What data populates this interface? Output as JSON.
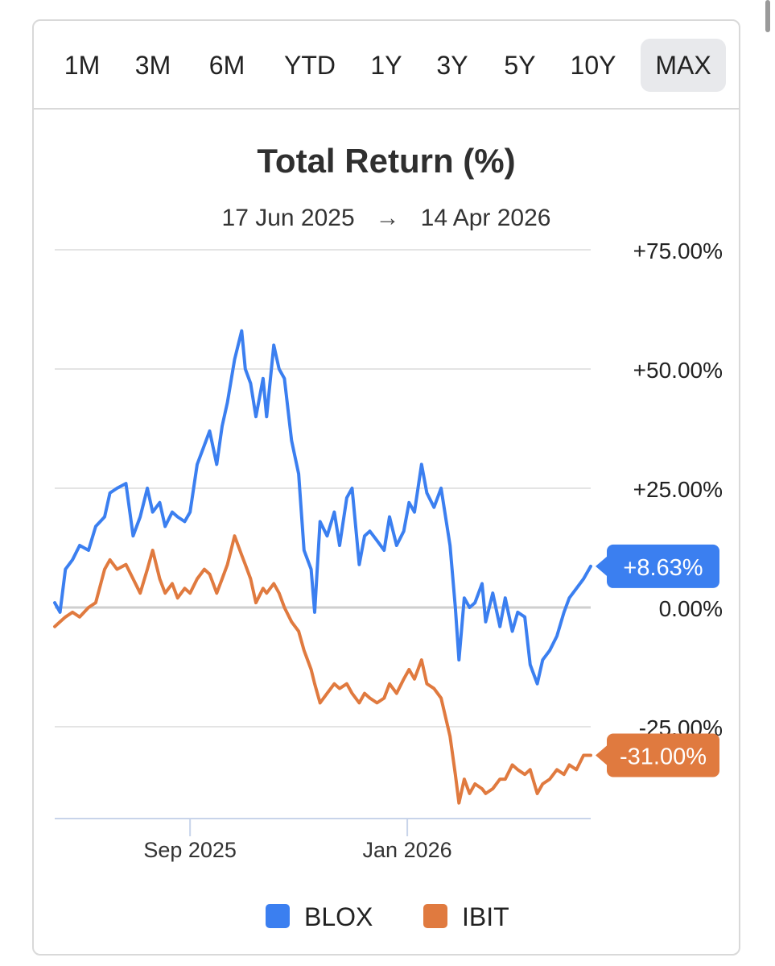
{
  "range_buttons": [
    {
      "label": "1M",
      "active": false
    },
    {
      "label": "3M",
      "active": false
    },
    {
      "label": "6M",
      "active": false
    },
    {
      "label": "YTD",
      "active": false
    },
    {
      "label": "1Y",
      "active": false
    },
    {
      "label": "3Y",
      "active": false
    },
    {
      "label": "5Y",
      "active": false
    },
    {
      "label": "10Y",
      "active": false
    },
    {
      "label": "MAX",
      "active": true
    }
  ],
  "date_range": {
    "start": "17 Jun 2025",
    "arrow": "→",
    "end": "14 Apr 2026"
  },
  "chart_data": {
    "type": "line",
    "title": "Total Return (%)",
    "x_range": [
      "2025-06-17",
      "2026-04-14"
    ],
    "x_tick_labels": [
      {
        "date": "2025-09-01",
        "label": "Sep 2025"
      },
      {
        "date": "2026-01-01",
        "label": "Jan 2026"
      }
    ],
    "y_ticks": [
      {
        "value": 75,
        "label": "+75.00%"
      },
      {
        "value": 50,
        "label": "+50.00%"
      },
      {
        "value": 25,
        "label": "+25.00%"
      },
      {
        "value": 0,
        "label": "0.00%"
      },
      {
        "value": -25,
        "label": "-25.00%"
      }
    ],
    "ylim": [
      -44,
      79
    ],
    "grid": true,
    "legend_position": "bottom",
    "series": [
      {
        "name": "BLOX",
        "color": "#3b7ff0",
        "end_label": "+8.63%",
        "points": [
          [
            "2025-06-17",
            1
          ],
          [
            "2025-06-20",
            -1
          ],
          [
            "2025-06-23",
            8
          ],
          [
            "2025-06-27",
            10
          ],
          [
            "2025-07-01",
            13
          ],
          [
            "2025-07-06",
            12
          ],
          [
            "2025-07-10",
            17
          ],
          [
            "2025-07-15",
            19
          ],
          [
            "2025-07-18",
            24
          ],
          [
            "2025-07-22",
            25
          ],
          [
            "2025-07-27",
            26
          ],
          [
            "2025-07-31",
            15
          ],
          [
            "2025-08-04",
            19
          ],
          [
            "2025-08-08",
            25
          ],
          [
            "2025-08-11",
            20
          ],
          [
            "2025-08-15",
            22
          ],
          [
            "2025-08-18",
            17
          ],
          [
            "2025-08-22",
            20
          ],
          [
            "2025-08-25",
            19
          ],
          [
            "2025-08-29",
            18
          ],
          [
            "2025-09-01",
            20
          ],
          [
            "2025-09-05",
            30
          ],
          [
            "2025-09-09",
            34
          ],
          [
            "2025-09-12",
            37
          ],
          [
            "2025-09-16",
            30
          ],
          [
            "2025-09-19",
            38
          ],
          [
            "2025-09-22",
            43
          ],
          [
            "2025-09-26",
            52
          ],
          [
            "2025-09-30",
            58
          ],
          [
            "2025-10-02",
            50
          ],
          [
            "2025-10-05",
            47
          ],
          [
            "2025-10-08",
            40
          ],
          [
            "2025-10-12",
            48
          ],
          [
            "2025-10-14",
            40
          ],
          [
            "2025-10-18",
            55
          ],
          [
            "2025-10-21",
            50
          ],
          [
            "2025-10-24",
            48
          ],
          [
            "2025-10-28",
            35
          ],
          [
            "2025-11-01",
            28
          ],
          [
            "2025-11-04",
            12
          ],
          [
            "2025-11-08",
            8
          ],
          [
            "2025-11-10",
            -1
          ],
          [
            "2025-11-13",
            18
          ],
          [
            "2025-11-17",
            15
          ],
          [
            "2025-11-21",
            20
          ],
          [
            "2025-11-24",
            13
          ],
          [
            "2025-11-28",
            23
          ],
          [
            "2025-12-01",
            25
          ],
          [
            "2025-12-05",
            9
          ],
          [
            "2025-12-08",
            15
          ],
          [
            "2025-12-11",
            16
          ],
          [
            "2025-12-15",
            14
          ],
          [
            "2025-12-19",
            12
          ],
          [
            "2025-12-22",
            19
          ],
          [
            "2025-12-26",
            13
          ],
          [
            "2025-12-30",
            16
          ],
          [
            "2026-01-02",
            22
          ],
          [
            "2026-01-05",
            20
          ],
          [
            "2026-01-09",
            30
          ],
          [
            "2026-01-12",
            24
          ],
          [
            "2026-01-16",
            21
          ],
          [
            "2026-01-20",
            25
          ],
          [
            "2026-01-25",
            13
          ],
          [
            "2026-01-28",
            0
          ],
          [
            "2026-01-30",
            -11
          ],
          [
            "2026-02-02",
            2
          ],
          [
            "2026-02-05",
            0
          ],
          [
            "2026-02-08",
            1
          ],
          [
            "2026-02-12",
            5
          ],
          [
            "2026-02-14",
            -3
          ],
          [
            "2026-02-18",
            3
          ],
          [
            "2026-02-22",
            -4
          ],
          [
            "2026-02-25",
            2
          ],
          [
            "2026-03-01",
            -5
          ],
          [
            "2026-03-04",
            -1
          ],
          [
            "2026-03-08",
            -2
          ],
          [
            "2026-03-11",
            -12
          ],
          [
            "2026-03-15",
            -16
          ],
          [
            "2026-03-18",
            -11
          ],
          [
            "2026-03-22",
            -9
          ],
          [
            "2026-03-26",
            -6
          ],
          [
            "2026-03-30",
            -1
          ],
          [
            "2026-04-02",
            2
          ],
          [
            "2026-04-06",
            4
          ],
          [
            "2026-04-10",
            6
          ],
          [
            "2026-04-14",
            8.63
          ]
        ]
      },
      {
        "name": "IBIT",
        "color": "#e07a3f",
        "end_label": "-31.00%",
        "points": [
          [
            "2025-06-17",
            -4
          ],
          [
            "2025-06-20",
            -3
          ],
          [
            "2025-06-23",
            -2
          ],
          [
            "2025-06-27",
            -1
          ],
          [
            "2025-07-01",
            -2
          ],
          [
            "2025-07-06",
            0
          ],
          [
            "2025-07-10",
            1
          ],
          [
            "2025-07-15",
            8
          ],
          [
            "2025-07-18",
            10
          ],
          [
            "2025-07-22",
            8
          ],
          [
            "2025-07-27",
            9
          ],
          [
            "2025-07-31",
            6
          ],
          [
            "2025-08-04",
            3
          ],
          [
            "2025-08-08",
            8
          ],
          [
            "2025-08-11",
            12
          ],
          [
            "2025-08-15",
            6
          ],
          [
            "2025-08-18",
            3
          ],
          [
            "2025-08-22",
            5
          ],
          [
            "2025-08-25",
            2
          ],
          [
            "2025-08-29",
            4
          ],
          [
            "2025-09-01",
            3
          ],
          [
            "2025-09-05",
            6
          ],
          [
            "2025-09-09",
            8
          ],
          [
            "2025-09-12",
            7
          ],
          [
            "2025-09-16",
            3
          ],
          [
            "2025-09-19",
            6
          ],
          [
            "2025-09-22",
            9
          ],
          [
            "2025-09-26",
            15
          ],
          [
            "2025-09-30",
            11
          ],
          [
            "2025-10-02",
            9
          ],
          [
            "2025-10-05",
            6
          ],
          [
            "2025-10-08",
            1
          ],
          [
            "2025-10-12",
            4
          ],
          [
            "2025-10-14",
            3
          ],
          [
            "2025-10-18",
            5
          ],
          [
            "2025-10-21",
            3
          ],
          [
            "2025-10-24",
            0
          ],
          [
            "2025-10-28",
            -3
          ],
          [
            "2025-11-01",
            -5
          ],
          [
            "2025-11-04",
            -9
          ],
          [
            "2025-11-08",
            -13
          ],
          [
            "2025-11-10",
            -16
          ],
          [
            "2025-11-13",
            -20
          ],
          [
            "2025-11-17",
            -18
          ],
          [
            "2025-11-21",
            -16
          ],
          [
            "2025-11-24",
            -17
          ],
          [
            "2025-11-28",
            -16
          ],
          [
            "2025-12-01",
            -18
          ],
          [
            "2025-12-05",
            -20
          ],
          [
            "2025-12-08",
            -18
          ],
          [
            "2025-12-11",
            -19
          ],
          [
            "2025-12-15",
            -20
          ],
          [
            "2025-12-19",
            -19
          ],
          [
            "2025-12-22",
            -16
          ],
          [
            "2025-12-26",
            -18
          ],
          [
            "2025-12-30",
            -15
          ],
          [
            "2026-01-02",
            -13
          ],
          [
            "2026-01-05",
            -15
          ],
          [
            "2026-01-09",
            -11
          ],
          [
            "2026-01-12",
            -16
          ],
          [
            "2026-01-16",
            -17
          ],
          [
            "2026-01-20",
            -19
          ],
          [
            "2026-01-25",
            -27
          ],
          [
            "2026-01-28",
            -35
          ],
          [
            "2026-01-30",
            -41
          ],
          [
            "2026-02-02",
            -36
          ],
          [
            "2026-02-05",
            -39
          ],
          [
            "2026-02-08",
            -37
          ],
          [
            "2026-02-12",
            -38
          ],
          [
            "2026-02-14",
            -39
          ],
          [
            "2026-02-18",
            -38
          ],
          [
            "2026-02-22",
            -36
          ],
          [
            "2026-02-25",
            -36
          ],
          [
            "2026-03-01",
            -33
          ],
          [
            "2026-03-04",
            -34
          ],
          [
            "2026-03-08",
            -35
          ],
          [
            "2026-03-11",
            -34
          ],
          [
            "2026-03-15",
            -39
          ],
          [
            "2026-03-18",
            -37
          ],
          [
            "2026-03-22",
            -36
          ],
          [
            "2026-03-26",
            -34
          ],
          [
            "2026-03-30",
            -35
          ],
          [
            "2026-04-02",
            -33
          ],
          [
            "2026-04-06",
            -34
          ],
          [
            "2026-04-10",
            -31
          ],
          [
            "2026-04-14",
            -31
          ]
        ]
      }
    ]
  }
}
